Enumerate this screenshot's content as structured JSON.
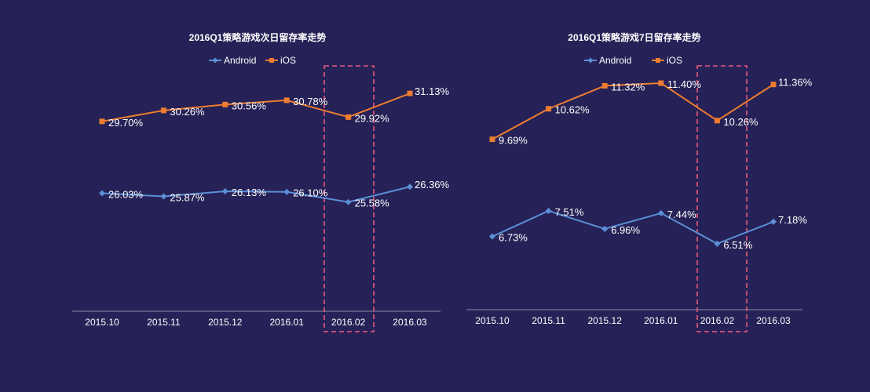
{
  "colors": {
    "background": "#262156",
    "android": "#5b8fd6",
    "ios": "#ed7d31",
    "axis": "#8c8aa8",
    "text": "#ffffff",
    "highlight": "#e85a7a"
  },
  "chart_data": [
    {
      "type": "line",
      "title": "2016Q1策略游戏次日留存率走势",
      "categories": [
        "2015.10",
        "2015.11",
        "2015.12",
        "2016.01",
        "2016.02",
        "2016.03"
      ],
      "series": [
        {
          "name": "Android",
          "values": [
            26.03,
            25.87,
            26.13,
            26.1,
            25.58,
            26.36
          ],
          "labels": [
            "26.03%",
            "25.87%",
            "26.13%",
            "26.10%",
            "25.58%",
            "26.36%"
          ]
        },
        {
          "name": "iOS",
          "values": [
            29.7,
            30.26,
            30.56,
            30.78,
            29.92,
            31.13
          ],
          "labels": [
            "29.70%",
            "30.26%",
            "30.56%",
            "30.78%",
            "29.92%",
            "31.13%"
          ]
        }
      ],
      "ylim": [
        20,
        33.5
      ],
      "highlight_category": "2016.02",
      "legend": "top-center",
      "grid": false
    },
    {
      "type": "line",
      "title": "2016Q1策略游戏7日留存率走势",
      "categories": [
        "2015.10",
        "2015.11",
        "2015.12",
        "2016.01",
        "2016.02",
        "2016.03"
      ],
      "series": [
        {
          "name": "Android",
          "values": [
            6.73,
            7.51,
            6.96,
            7.44,
            6.51,
            7.18
          ],
          "labels": [
            "6.73%",
            "7.51%",
            "6.96%",
            "7.44%",
            "6.51%",
            "7.18%"
          ]
        },
        {
          "name": "iOS",
          "values": [
            9.69,
            10.62,
            11.32,
            11.4,
            10.26,
            11.36
          ],
          "labels": [
            "9.69%",
            "10.62%",
            "11.32%",
            "11.40%",
            "10.26%",
            "11.36%"
          ]
        }
      ],
      "ylim": [
        4.5,
        12.5
      ],
      "highlight_category": "2016.02",
      "legend": "top-center",
      "grid": false
    }
  ]
}
